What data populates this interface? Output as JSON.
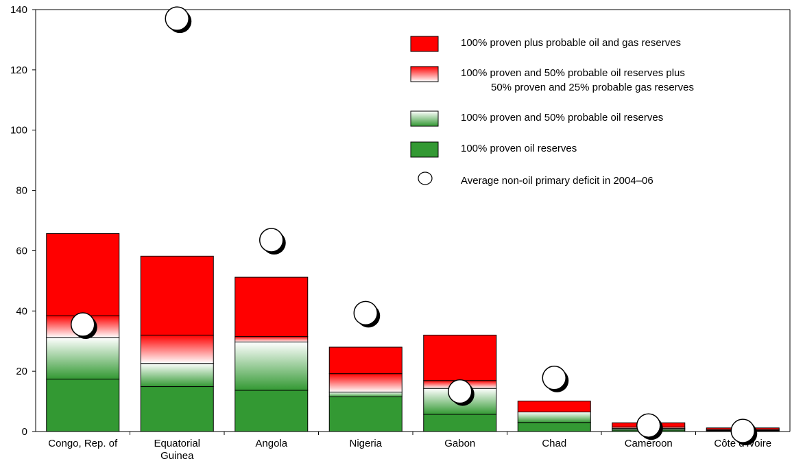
{
  "chart_data": {
    "type": "bar",
    "stacked": true,
    "title": "",
    "xlabel": "",
    "ylabel": "",
    "ylim": [
      0,
      140
    ],
    "yticks": [
      0,
      20,
      40,
      60,
      80,
      100,
      120,
      140
    ],
    "grid": false,
    "legend_position": "top-right",
    "categories": [
      [
        "Congo, Rep. of"
      ],
      [
        "Equatorial",
        "Guinea"
      ],
      [
        "Angola"
      ],
      [
        "Nigeria"
      ],
      [
        "Gabon"
      ],
      [
        "Chad"
      ],
      [
        "Cameroon"
      ],
      [
        "Côte d'Ivoire"
      ]
    ],
    "series": [
      {
        "name": "100% proven oil reserves",
        "style": "solid-green",
        "color": "#339933",
        "values": [
          17.4,
          14.9,
          13.7,
          11.5,
          5.7,
          3.0,
          0.5,
          0.2
        ]
      },
      {
        "name": "100% proven and 50% probable oil reserves",
        "style": "gradient-green",
        "color": "#339933",
        "values": [
          13.8,
          7.7,
          16.0,
          1.6,
          8.6,
          3.5,
          0.5,
          0.2
        ]
      },
      {
        "name": "100% proven and 50% probable oil reserves plus|50% proven and 25% probable gas reserves",
        "style": "gradient-red",
        "color": "#ff0000",
        "values": [
          7.2,
          9.4,
          1.8,
          6.1,
          2.6,
          0.0,
          0.5,
          0.3
        ]
      },
      {
        "name": "100% proven plus probable oil and gas reserves",
        "style": "solid-red",
        "color": "#ff0000",
        "values": [
          27.3,
          26.2,
          19.7,
          8.8,
          15.1,
          3.6,
          1.4,
          0.5
        ]
      }
    ],
    "markers": {
      "name": "Average non-oil primary deficit in 2004–06",
      "values": [
        35.5,
        137.0,
        63.5,
        39.3,
        13.3,
        17.8,
        2.0,
        0.2
      ]
    },
    "legend_order": [
      3,
      2,
      1,
      0,
      "markers"
    ]
  }
}
